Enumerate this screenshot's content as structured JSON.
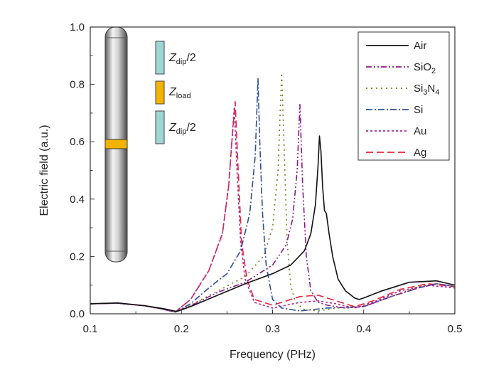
{
  "chart_data": {
    "type": "line",
    "title": "",
    "xlabel": "Frequency (PHz)",
    "ylabel": "Electric field (a.u.)",
    "xlim": [
      0.1,
      0.5
    ],
    "ylim": [
      0.0,
      1.0
    ],
    "xticks": [
      0.1,
      0.2,
      0.3,
      0.4,
      0.5
    ],
    "yticks": [
      0.0,
      0.2,
      0.4,
      0.6,
      0.8,
      1.0
    ],
    "xtick_labels": [
      "0.1",
      "0.2",
      "0.3",
      "0.4",
      "0.5"
    ],
    "ytick_labels": [
      "0.0",
      "0.2",
      "0.4",
      "0.6",
      "0.8",
      "1.0"
    ],
    "grid": false,
    "legend_position": "top-right",
    "series": [
      {
        "name": "Air",
        "name_sub": "",
        "name_parts": [
          {
            "t": "Air",
            "sub": false
          }
        ],
        "color": "#111111",
        "dash": "solid",
        "stroke_width": 1.6,
        "x": [
          0.1,
          0.13,
          0.16,
          0.18,
          0.195,
          0.21,
          0.24,
          0.27,
          0.3,
          0.32,
          0.335,
          0.342,
          0.347,
          0.35,
          0.3515,
          0.353,
          0.355,
          0.357,
          0.359,
          0.362,
          0.366,
          0.372,
          0.38,
          0.39,
          0.395,
          0.4,
          0.42,
          0.45,
          0.48,
          0.5
        ],
        "y": [
          0.035,
          0.038,
          0.028,
          0.018,
          0.008,
          0.025,
          0.065,
          0.105,
          0.14,
          0.17,
          0.22,
          0.28,
          0.38,
          0.52,
          0.62,
          0.57,
          0.44,
          0.36,
          0.35,
          0.28,
          0.2,
          0.12,
          0.08,
          0.055,
          0.05,
          0.055,
          0.08,
          0.11,
          0.115,
          0.1
        ]
      },
      {
        "name": "SiO2",
        "name_sub": "",
        "name_parts": [
          {
            "t": "SiO",
            "sub": false
          },
          {
            "t": "2",
            "sub": true
          }
        ],
        "color": "#8b1a8b",
        "dash": "8 3 2 3 2 3",
        "stroke_width": 1.6,
        "x": [
          0.1,
          0.13,
          0.16,
          0.18,
          0.193,
          0.21,
          0.24,
          0.27,
          0.3,
          0.315,
          0.322,
          0.327,
          0.33,
          0.333,
          0.337,
          0.342,
          0.35,
          0.36,
          0.38,
          0.4,
          0.43,
          0.46,
          0.48,
          0.5
        ],
        "y": [
          0.035,
          0.037,
          0.028,
          0.016,
          0.006,
          0.028,
          0.075,
          0.11,
          0.17,
          0.24,
          0.33,
          0.5,
          0.73,
          0.45,
          0.2,
          0.08,
          0.04,
          0.03,
          0.02,
          0.025,
          0.06,
          0.09,
          0.105,
          0.095
        ]
      },
      {
        "name": "Si3N4",
        "name_sub": "",
        "name_parts": [
          {
            "t": "Si",
            "sub": false
          },
          {
            "t": "3",
            "sub": true
          },
          {
            "t": "N",
            "sub": false
          },
          {
            "t": "4",
            "sub": true
          }
        ],
        "color": "#7a7a22",
        "dash": "2 5",
        "stroke_width": 1.6,
        "x": [
          0.1,
          0.13,
          0.16,
          0.18,
          0.193,
          0.21,
          0.24,
          0.27,
          0.29,
          0.3,
          0.306,
          0.31,
          0.313,
          0.316,
          0.32,
          0.325,
          0.335,
          0.35,
          0.37,
          0.4,
          0.43,
          0.46,
          0.48,
          0.5
        ],
        "y": [
          0.035,
          0.037,
          0.028,
          0.016,
          0.006,
          0.03,
          0.08,
          0.13,
          0.2,
          0.3,
          0.5,
          0.84,
          0.55,
          0.25,
          0.1,
          0.04,
          0.015,
          0.01,
          0.02,
          0.025,
          0.06,
          0.095,
          0.105,
          0.095
        ]
      },
      {
        "name": "Si",
        "name_sub": "",
        "name_parts": [
          {
            "t": "Si",
            "sub": false
          }
        ],
        "color": "#2e4f9a",
        "dash": "9 3 2 3",
        "stroke_width": 1.6,
        "x": [
          0.1,
          0.13,
          0.16,
          0.18,
          0.193,
          0.21,
          0.23,
          0.25,
          0.265,
          0.275,
          0.281,
          0.284,
          0.286,
          0.289,
          0.293,
          0.3,
          0.31,
          0.33,
          0.36,
          0.4,
          0.43,
          0.46,
          0.48,
          0.5
        ],
        "y": [
          0.035,
          0.037,
          0.028,
          0.016,
          0.006,
          0.035,
          0.09,
          0.14,
          0.22,
          0.35,
          0.55,
          0.82,
          0.6,
          0.35,
          0.17,
          0.05,
          0.02,
          0.01,
          0.02,
          0.025,
          0.06,
          0.09,
          0.105,
          0.095
        ]
      },
      {
        "name": "Au",
        "name_sub": "",
        "name_parts": [
          {
            "t": "Au",
            "sub": false
          }
        ],
        "color": "#b0238e",
        "dash": "3 3",
        "stroke_width": 1.6,
        "x": [
          0.1,
          0.13,
          0.16,
          0.18,
          0.193,
          0.21,
          0.23,
          0.245,
          0.252,
          0.256,
          0.258,
          0.261,
          0.265,
          0.27,
          0.28,
          0.3,
          0.33,
          0.35,
          0.37,
          0.39,
          0.41,
          0.44,
          0.47,
          0.5
        ],
        "y": [
          0.035,
          0.037,
          0.028,
          0.016,
          0.006,
          0.05,
          0.15,
          0.28,
          0.45,
          0.63,
          0.72,
          0.5,
          0.25,
          0.12,
          0.04,
          0.02,
          0.04,
          0.045,
          0.035,
          0.02,
          0.04,
          0.08,
          0.1,
          0.09
        ]
      },
      {
        "name": "Ag",
        "name_sub": "",
        "name_parts": [
          {
            "t": "Ag",
            "sub": false
          }
        ],
        "color": "#e8253c",
        "dash": "10 5",
        "stroke_width": 1.6,
        "x": [
          0.1,
          0.13,
          0.16,
          0.18,
          0.193,
          0.21,
          0.23,
          0.245,
          0.252,
          0.256,
          0.259,
          0.262,
          0.266,
          0.272,
          0.28,
          0.3,
          0.33,
          0.35,
          0.37,
          0.39,
          0.41,
          0.44,
          0.47,
          0.5
        ],
        "y": [
          0.035,
          0.037,
          0.028,
          0.016,
          0.006,
          0.05,
          0.15,
          0.28,
          0.45,
          0.63,
          0.74,
          0.52,
          0.25,
          0.12,
          0.05,
          0.03,
          0.06,
          0.065,
          0.045,
          0.025,
          0.045,
          0.085,
          0.105,
          0.095
        ]
      }
    ]
  },
  "inset": {
    "labels": [
      {
        "base": "Z",
        "sub": "dip",
        "suffix": "/2"
      },
      {
        "base": "Z",
        "sub": "load",
        "suffix": ""
      },
      {
        "base": "Z",
        "sub": "dip",
        "suffix": "/2"
      }
    ],
    "colors": {
      "cyan": "#9ed6d6",
      "gold": "#f2b400",
      "rod_light": "#ececec",
      "rod_dark": "#6d6d6d"
    }
  }
}
